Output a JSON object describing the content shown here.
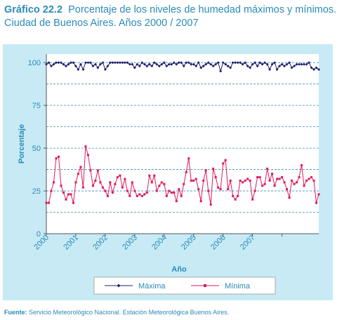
{
  "header": {
    "number": "Gráfico 22.2",
    "title": "Porcentaje de los niveles de humedad máximos y mínimos.",
    "subtitle": "Ciudad de Buenos Aires. Años 2000 / 2007"
  },
  "source": {
    "label": "Fuente:",
    "text": "Servicio Meteorológico Nacional. Estación Meteorológica Buenos Aires."
  },
  "colors": {
    "accent": "#2a8bb8",
    "panel": "#c7eaf5",
    "max": "#1f1f6e",
    "min": "#e0195a"
  },
  "chart_data": {
    "type": "line",
    "xlabel": "Año",
    "ylabel": "Porcentaje",
    "ylim": [
      0,
      105
    ],
    "yticks": [
      0,
      25,
      50,
      75,
      100
    ],
    "gridlines_y": [
      12.5,
      25,
      37.5,
      50,
      62.5,
      75,
      87.5,
      100
    ],
    "x_tick_labels": [
      "2000",
      "2001",
      "2002",
      "2003",
      "2004",
      "2005",
      "2006",
      "2007"
    ],
    "x_unit": "month index from January 2000",
    "legend_position": "bottom",
    "series": [
      {
        "name": "Máxima",
        "values": [
          99,
          100,
          98,
          99,
          100,
          100,
          100,
          99,
          98,
          99,
          100,
          100,
          98,
          96,
          99,
          96,
          100,
          100,
          100,
          98,
          99,
          97,
          99,
          100,
          96,
          98,
          100,
          100,
          100,
          100,
          100,
          100,
          100,
          100,
          99,
          99,
          97,
          99,
          98,
          100,
          99,
          98,
          99,
          98,
          100,
          99,
          98,
          99,
          100,
          98,
          99,
          99,
          100,
          99,
          100,
          100,
          98,
          100,
          100,
          99,
          99,
          98,
          100,
          97,
          98,
          99,
          100,
          99,
          98,
          99,
          100,
          95,
          100,
          99,
          98,
          97,
          100,
          100,
          100,
          100,
          99,
          100,
          98,
          97,
          99,
          100,
          98,
          100,
          99,
          100,
          99,
          96,
          99,
          100,
          96,
          98,
          99,
          98,
          99,
          100,
          97,
          98,
          99,
          99,
          99,
          99,
          99,
          100,
          97,
          96,
          97,
          96
        ]
      },
      {
        "name": "Mínima",
        "values": [
          18,
          18,
          25,
          30,
          44,
          45,
          28,
          24,
          20,
          23,
          23,
          18,
          30,
          35,
          39,
          27,
          51,
          46,
          37,
          28,
          31,
          37,
          30,
          27,
          25,
          22,
          30,
          24,
          29,
          33,
          34,
          27,
          32,
          25,
          22,
          30,
          25,
          22,
          23,
          22,
          23,
          24,
          34,
          30,
          34,
          25,
          28,
          30,
          29,
          22,
          25,
          24,
          24,
          19,
          26,
          22,
          29,
          36,
          44,
          31,
          31,
          32,
          26,
          19,
          31,
          37,
          25,
          17,
          38,
          33,
          27,
          26,
          41,
          43,
          26,
          31,
          22,
          20,
          22,
          31,
          30,
          31,
          32,
          31,
          20,
          25,
          33,
          33,
          28,
          29,
          38,
          31,
          35,
          28,
          32,
          32,
          33,
          30,
          26,
          21,
          31,
          29,
          30,
          33,
          40,
          28,
          31,
          32,
          33,
          31,
          18,
          23
        ]
      }
    ]
  }
}
